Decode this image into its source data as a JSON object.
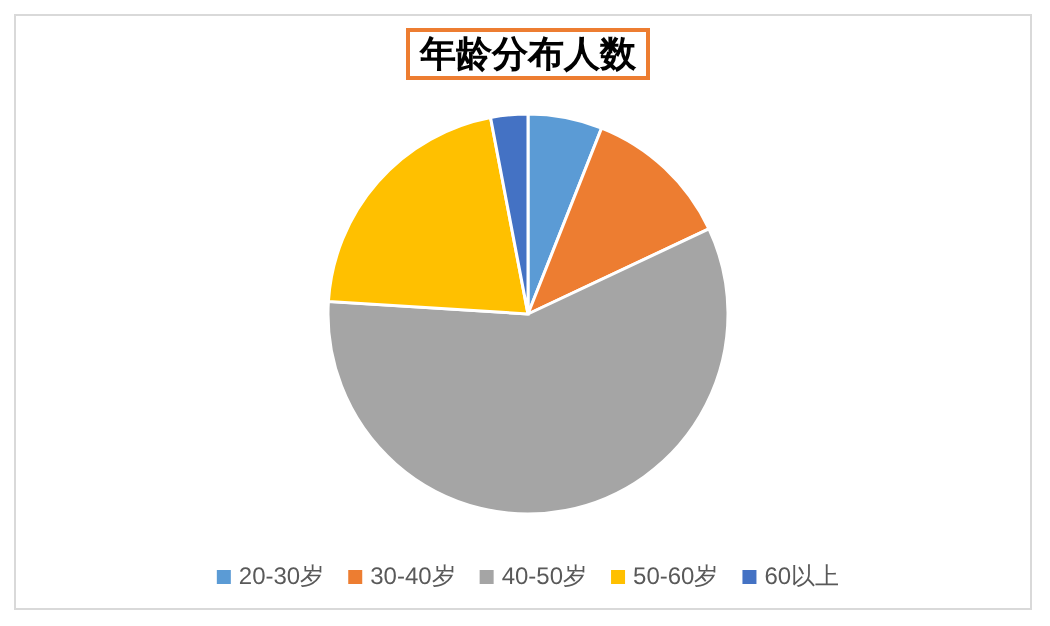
{
  "chart_data": {
    "type": "pie",
    "title": "年龄分布人数",
    "categories": [
      "20-30岁",
      "30-40岁",
      "40-50岁",
      "50-60岁",
      "60以上"
    ],
    "values": [
      6,
      12,
      58,
      21,
      3
    ],
    "colors": [
      "#5b9bd5",
      "#ed7d31",
      "#a5a5a5",
      "#ffc000",
      "#4472c4"
    ],
    "legend": "bottom"
  }
}
